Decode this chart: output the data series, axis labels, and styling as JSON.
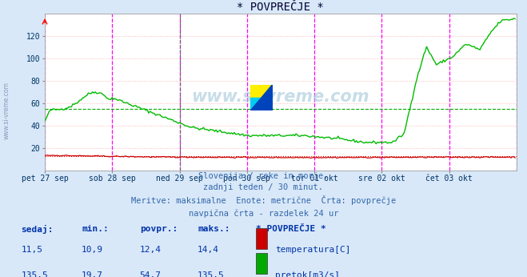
{
  "title": "* POVPREČJE *",
  "background_color": "#d8e8f8",
  "plot_bg_color": "#ffffff",
  "xlabel_ticks": [
    "pet 27 sep",
    "sob 28 sep",
    "ned 29 sep",
    "pon 30 sep",
    "tor 01 okt",
    "sre 02 okt",
    "čet 03 okt"
  ],
  "ylim": [
    0,
    140
  ],
  "xlim": [
    0,
    336
  ],
  "watermark": "www.si-vreme.com",
  "subtitle_lines": [
    "Slovenija / reke in morje.",
    "zadnji teden / 30 minut.",
    "Meritve: maksimalne  Enote: metrične  Črta: povprečje",
    "navpična črta - razdelek 24 ur"
  ],
  "legend_title": "* POVPREČJE *",
  "legend_items": [
    {
      "label": "temperatura[C]",
      "color": "#cc0000"
    },
    {
      "label": "pretok[m3/s]",
      "color": "#00aa00"
    }
  ],
  "stats_headers": [
    "sedaj:",
    "min.:",
    "povpr.:",
    "maks.:"
  ],
  "stats_rows": [
    [
      "11,5",
      "10,9",
      "12,4",
      "14,4"
    ],
    [
      "135,5",
      "19,7",
      "54,7",
      "135,5"
    ]
  ],
  "grid_h_color": "#ffaaaa",
  "grid_v_color": "#ffaaaa",
  "magenta_vline_color": "#ff00ff",
  "black_dash_vline_color": "#666666",
  "temp_color": "#cc0000",
  "flow_color": "#00bb00",
  "avg_flow_color": "#00aa00",
  "avg_flow_value": 54.7,
  "temp_dotted_color": "#dd0000",
  "temp_avg_value": 12.4,
  "logo_colors": [
    "#ffee00",
    "#00ccee",
    "#0044bb"
  ],
  "n_points": 336,
  "left_watermark_color": "#8899bb"
}
